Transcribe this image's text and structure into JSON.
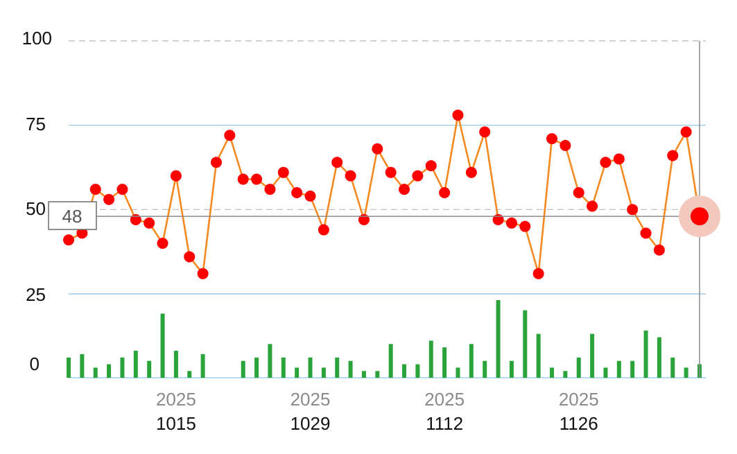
{
  "chart_data": {
    "type": "line",
    "title": "",
    "xlabel": "",
    "ylabel": "",
    "ylim": [
      0,
      100
    ],
    "y_ticks": [
      "100",
      "75",
      "50",
      "25",
      "0"
    ],
    "x_tick_labels": [
      {
        "index": 8,
        "year": "2025",
        "date": "1015"
      },
      {
        "index": 18,
        "year": "2025",
        "date": "1029"
      },
      {
        "index": 28,
        "year": "2025",
        "date": "1112"
      },
      {
        "index": 38,
        "year": "2025",
        "date": "1126"
      }
    ],
    "series": [
      {
        "kind": "line",
        "color": "#f5891f",
        "marker_color": "#ff0000",
        "values": [
          41,
          43,
          56,
          53,
          56,
          47,
          46,
          40,
          60,
          36,
          31,
          64,
          72,
          59,
          59,
          56,
          61,
          55,
          54,
          44,
          64,
          60,
          47,
          68,
          61,
          56,
          60,
          63,
          55,
          78,
          61,
          73,
          47,
          46,
          45,
          31,
          71,
          69,
          55,
          51,
          64,
          65,
          50,
          43,
          38,
          66,
          73,
          48
        ]
      },
      {
        "kind": "bar",
        "color": "#2aa43a",
        "values": [
          6,
          7,
          3,
          4,
          6,
          8,
          5,
          19,
          8,
          2,
          7,
          0,
          0,
          5,
          6,
          10,
          6,
          3,
          6,
          3,
          6,
          5,
          2,
          2,
          10,
          4,
          4,
          11,
          9,
          3,
          10,
          5,
          23,
          5,
          20,
          13,
          3,
          2,
          6,
          13,
          3,
          5,
          5,
          14,
          12,
          6,
          3,
          4
        ]
      }
    ],
    "crosshair": {
      "index": 47,
      "value": "48"
    },
    "grid": true,
    "legend": "none"
  }
}
